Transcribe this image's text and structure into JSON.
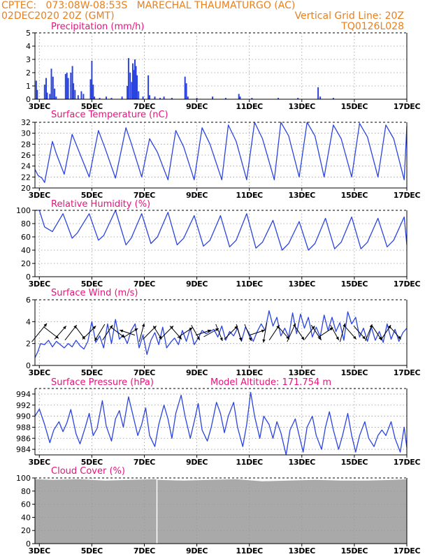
{
  "header": {
    "line1_left": "CPTEC:   073:08W-08:53S   MARECHAL THAUMATURGO (AC)",
    "line2_left": "02DEC2020 20Z (GMT)",
    "line2_right": "Vertical Grid Line: 20Z",
    "line3_right": "TQ0126L028"
  },
  "colors": {
    "header": "#e8801e",
    "title": "#e8127c",
    "series": "#2b44e0",
    "cloud": "#a9a9a9",
    "grid": "#999999"
  },
  "x_axis": {
    "start_day": 2.833,
    "end_day": 17.0,
    "ticks": [
      {
        "day": 3,
        "label": "3DEC"
      },
      {
        "day": 5,
        "label": "5DEC"
      },
      {
        "day": 7,
        "label": "7DEC"
      },
      {
        "day": 9,
        "label": "9DEC"
      },
      {
        "day": 11,
        "label": "11DEC"
      },
      {
        "day": 13,
        "label": "13DEC"
      },
      {
        "day": 15,
        "label": "15DEC"
      },
      {
        "day": 17,
        "label": "17DEC"
      }
    ]
  },
  "chart_data": [
    {
      "type": "bar",
      "title": "Precipitation (mm/h)",
      "ylim": [
        0,
        5
      ],
      "yticks": [
        "0",
        "1",
        "2",
        "3",
        "4",
        "5"
      ],
      "events": [
        {
          "day": 2.88,
          "value": 1.4
        },
        {
          "day": 2.92,
          "value": 0.7
        },
        {
          "day": 3.2,
          "value": 1.1
        },
        {
          "day": 3.26,
          "value": 1.6
        },
        {
          "day": 3.3,
          "value": 0.5
        },
        {
          "day": 3.4,
          "value": 0.4
        },
        {
          "day": 3.46,
          "value": 2.3
        },
        {
          "day": 3.52,
          "value": 1.7
        },
        {
          "day": 3.58,
          "value": 0.8
        },
        {
          "day": 3.64,
          "value": 0.2
        },
        {
          "day": 4.0,
          "value": 1.9
        },
        {
          "day": 4.05,
          "value": 2.0
        },
        {
          "day": 4.1,
          "value": 1.6
        },
        {
          "day": 4.2,
          "value": 2.0
        },
        {
          "day": 4.26,
          "value": 2.5
        },
        {
          "day": 4.3,
          "value": 1.2
        },
        {
          "day": 4.36,
          "value": 0.7
        },
        {
          "day": 4.48,
          "value": 0.3
        },
        {
          "day": 4.6,
          "value": 0.6
        },
        {
          "day": 4.68,
          "value": 0.4
        },
        {
          "day": 4.95,
          "value": 1.5
        },
        {
          "day": 5.0,
          "value": 2.9
        },
        {
          "day": 5.05,
          "value": 1.1
        },
        {
          "day": 5.1,
          "value": 0.2
        },
        {
          "day": 5.3,
          "value": 0.1
        },
        {
          "day": 5.55,
          "value": 0.2
        },
        {
          "day": 5.75,
          "value": 0.1
        },
        {
          "day": 6.15,
          "value": 0.2
        },
        {
          "day": 6.35,
          "value": 1.0
        },
        {
          "day": 6.4,
          "value": 3.1
        },
        {
          "day": 6.46,
          "value": 2.0
        },
        {
          "day": 6.52,
          "value": 1.3
        },
        {
          "day": 6.56,
          "value": 2.7
        },
        {
          "day": 6.6,
          "value": 2.2
        },
        {
          "day": 6.64,
          "value": 3.0
        },
        {
          "day": 6.68,
          "value": 2.5
        },
        {
          "day": 6.72,
          "value": 1.8
        },
        {
          "day": 6.78,
          "value": 0.6
        },
        {
          "day": 6.95,
          "value": 0.2
        },
        {
          "day": 7.15,
          "value": 1.8
        },
        {
          "day": 7.2,
          "value": 0.3
        },
        {
          "day": 7.4,
          "value": 0.2
        },
        {
          "day": 7.6,
          "value": 0.1
        },
        {
          "day": 7.75,
          "value": 0.2
        },
        {
          "day": 8.05,
          "value": 0.1
        },
        {
          "day": 8.55,
          "value": 1.7
        },
        {
          "day": 8.6,
          "value": 1.2
        },
        {
          "day": 8.66,
          "value": 0.2
        },
        {
          "day": 9.0,
          "value": 0.1
        },
        {
          "day": 9.6,
          "value": 0.2
        },
        {
          "day": 10.1,
          "value": 0.1
        },
        {
          "day": 10.6,
          "value": 0.4
        },
        {
          "day": 10.65,
          "value": 0.2
        },
        {
          "day": 11.1,
          "value": 0.1
        },
        {
          "day": 12.1,
          "value": 0.1
        },
        {
          "day": 12.85,
          "value": 0.1
        },
        {
          "day": 13.62,
          "value": 0.9
        },
        {
          "day": 13.7,
          "value": 0.2
        },
        {
          "day": 14.2,
          "value": 0.1
        }
      ]
    },
    {
      "type": "line",
      "title": "Surface Temperature (nC)",
      "ylim": [
        20,
        32
      ],
      "yticks": [
        "20",
        "22",
        "24",
        "26",
        "28",
        "30",
        "32"
      ],
      "x": [
        2.833,
        2.95,
        3.1,
        3.2,
        3.5,
        3.65,
        3.95,
        4.25,
        4.5,
        4.9,
        5.25,
        5.5,
        5.9,
        6.3,
        6.5,
        6.9,
        7.2,
        7.5,
        7.9,
        8.2,
        8.5,
        8.9,
        9.2,
        9.5,
        9.95,
        10.2,
        10.5,
        10.9,
        11.2,
        11.5,
        11.95,
        12.2,
        12.5,
        12.9,
        13.2,
        13.5,
        13.85,
        14.2,
        14.5,
        14.9,
        15.2,
        15.5,
        15.9,
        16.2,
        16.5,
        16.9,
        17.0
      ],
      "y": [
        23.4,
        22.3,
        21.8,
        21.0,
        28.5,
        26.2,
        22.5,
        29.8,
        26.8,
        22.0,
        30.5,
        27.3,
        21.8,
        31.0,
        28.2,
        22.0,
        29.0,
        26.5,
        21.5,
        30.5,
        27.5,
        21.5,
        31.0,
        28.0,
        21.5,
        31.5,
        28.5,
        21.5,
        32.0,
        29.0,
        21.5,
        32.0,
        29.5,
        22.0,
        32.0,
        29.5,
        22.0,
        31.5,
        29.0,
        22.0,
        31.8,
        29.3,
        22.0,
        31.5,
        29.0,
        21.5,
        31.3
      ]
    },
    {
      "type": "line",
      "title": "Relative Humidity (%)",
      "ylim": [
        0,
        100
      ],
      "yticks": [
        "0",
        "20",
        "40",
        "60",
        "80",
        "100"
      ],
      "x": [
        2.833,
        3.0,
        3.2,
        3.5,
        3.9,
        4.25,
        4.45,
        4.9,
        5.25,
        5.45,
        5.9,
        6.3,
        6.5,
        6.9,
        7.25,
        7.5,
        7.9,
        8.25,
        8.5,
        8.9,
        9.25,
        9.5,
        9.9,
        10.25,
        10.5,
        10.9,
        11.25,
        11.5,
        11.9,
        12.25,
        12.5,
        12.9,
        13.25,
        13.5,
        13.9,
        14.25,
        14.5,
        14.9,
        15.25,
        15.5,
        15.9,
        16.25,
        16.5,
        16.9,
        17.0
      ],
      "y": [
        100,
        100,
        75,
        68,
        95,
        58,
        66,
        95,
        55,
        62,
        100,
        48,
        58,
        95,
        50,
        60,
        97,
        48,
        58,
        92,
        46,
        55,
        92,
        45,
        55,
        95,
        43,
        52,
        85,
        40,
        50,
        83,
        40,
        50,
        88,
        42,
        52,
        90,
        42,
        52,
        88,
        45,
        55,
        90,
        48
      ]
    },
    {
      "type": "line",
      "title": "Surface Wind (m/s)",
      "ylim": [
        0,
        6
      ],
      "yticks": [
        "0",
        "2",
        "4",
        "6"
      ],
      "x": [
        2.833,
        2.95,
        3.05,
        3.2,
        3.35,
        3.5,
        3.65,
        3.8,
        3.95,
        4.1,
        4.25,
        4.4,
        4.55,
        4.7,
        4.85,
        5.0,
        5.15,
        5.3,
        5.45,
        5.6,
        5.75,
        5.9,
        6.05,
        6.2,
        6.35,
        6.5,
        6.65,
        6.8,
        6.95,
        7.1,
        7.25,
        7.4,
        7.55,
        7.7,
        7.85,
        8.0,
        8.15,
        8.3,
        8.45,
        8.6,
        8.75,
        8.9,
        9.05,
        9.2,
        9.35,
        9.5,
        9.65,
        9.8,
        9.95,
        10.1,
        10.25,
        10.4,
        10.55,
        10.7,
        10.85,
        11.0,
        11.15,
        11.3,
        11.45,
        11.6,
        11.75,
        11.9,
        12.05,
        12.2,
        12.35,
        12.5,
        12.65,
        12.8,
        12.95,
        13.1,
        13.25,
        13.4,
        13.55,
        13.7,
        13.85,
        14.0,
        14.15,
        14.3,
        14.45,
        14.6,
        14.75,
        14.9,
        15.05,
        15.2,
        15.35,
        15.5,
        15.65,
        15.8,
        15.95,
        16.1,
        16.25,
        16.4,
        16.55,
        16.7,
        16.85,
        17.0
      ],
      "y": [
        0.7,
        1.3,
        2.0,
        1.9,
        2.3,
        1.7,
        2.2,
        1.9,
        1.6,
        2.0,
        1.7,
        2.3,
        1.8,
        1.5,
        2.2,
        4.0,
        2.1,
        2.7,
        1.6,
        3.8,
        2.0,
        4.2,
        2.4,
        2.8,
        2.0,
        3.2,
        3.8,
        1.6,
        2.8,
        1.0,
        2.3,
        3.0,
        1.9,
        3.5,
        1.6,
        2.1,
        2.5,
        1.9,
        3.2,
        2.2,
        3.4,
        1.9,
        2.5,
        3.2,
        2.9,
        3.1,
        3.3,
        2.6,
        3.6,
        2.3,
        3.1,
        2.7,
        3.4,
        2.2,
        3.5,
        2.9,
        2.2,
        3.1,
        3.8,
        3.2,
        5.0,
        3.6,
        4.4,
        2.7,
        3.4,
        2.6,
        4.8,
        2.9,
        4.7,
        3.4,
        4.4,
        2.6,
        3.5,
        2.6,
        4.6,
        3.2,
        4.4,
        3.1,
        3.9,
        2.3,
        4.9,
        3.8,
        4.4,
        2.6,
        3.4,
        2.2,
        3.5,
        2.3,
        3.1,
        2.1,
        3.8,
        2.4,
        3.3,
        2.2,
        3.0,
        3.4
      ],
      "arrows": [
        {
          "day": 3.0,
          "u": 0.9,
          "v": 1.1
        },
        {
          "day": 3.45,
          "u": 0.9,
          "v": -0.7
        },
        {
          "day": 3.8,
          "u": 0.7,
          "v": 0.8
        },
        {
          "day": 4.2,
          "u": 0.7,
          "v": 0.9
        },
        {
          "day": 4.55,
          "u": 0.6,
          "v": -0.8
        },
        {
          "day": 4.9,
          "u": 0.8,
          "v": 0.8
        },
        {
          "day": 5.3,
          "u": -0.6,
          "v": -1.0
        },
        {
          "day": 5.6,
          "u": 0.6,
          "v": 0.9
        },
        {
          "day": 6.0,
          "u": 0.8,
          "v": -0.6
        },
        {
          "day": 6.35,
          "u": -0.9,
          "v": 0.3
        },
        {
          "day": 6.5,
          "u": 0.8,
          "v": 0.5
        },
        {
          "day": 6.9,
          "u": 0.3,
          "v": 1.1
        },
        {
          "day": 7.2,
          "u": 0.8,
          "v": 0.8
        },
        {
          "day": 7.5,
          "u": 0.5,
          "v": -0.8
        },
        {
          "day": 7.85,
          "u": 0.8,
          "v": 0.8
        },
        {
          "day": 8.2,
          "u": 0.7,
          "v": -0.8
        },
        {
          "day": 8.55,
          "u": 0.9,
          "v": 0.6
        },
        {
          "day": 8.95,
          "u": 0.5,
          "v": -0.9
        },
        {
          "day": 9.25,
          "u": 0.9,
          "v": 0.3
        },
        {
          "day": 9.55,
          "u": 0.9,
          "v": 0.5
        },
        {
          "day": 9.85,
          "u": 0.4,
          "v": -1.0
        },
        {
          "day": 10.3,
          "u": 0.8,
          "v": 0.8
        },
        {
          "day": 10.6,
          "u": 0.3,
          "v": -1.0
        },
        {
          "day": 10.95,
          "u": 0.4,
          "v": -1.0
        },
        {
          "day": 11.3,
          "u": 0.9,
          "v": 0.3
        },
        {
          "day": 11.6,
          "u": -0.2,
          "v": -1.2
        },
        {
          "day": 11.95,
          "u": 0.6,
          "v": 0.9
        },
        {
          "day": 12.3,
          "u": 0.7,
          "v": -0.8
        },
        {
          "day": 12.6,
          "u": 0.5,
          "v": 1.1
        },
        {
          "day": 12.9,
          "u": 0.6,
          "v": -0.9
        },
        {
          "day": 13.3,
          "u": 0.6,
          "v": 0.8
        },
        {
          "day": 13.55,
          "u": 0.6,
          "v": -0.9
        },
        {
          "day": 13.9,
          "u": 0.9,
          "v": 0.6
        },
        {
          "day": 14.25,
          "u": 0.5,
          "v": -0.9
        },
        {
          "day": 14.55,
          "u": 0.3,
          "v": 1.1
        },
        {
          "day": 14.85,
          "u": 0.7,
          "v": -0.8
        },
        {
          "day": 15.2,
          "u": 0.7,
          "v": -0.8
        },
        {
          "day": 15.55,
          "u": 0.4,
          "v": 1.0
        },
        {
          "day": 15.85,
          "u": 0.6,
          "v": -0.9
        },
        {
          "day": 16.2,
          "u": 0.6,
          "v": 0.9
        },
        {
          "day": 16.55,
          "u": 0.7,
          "v": -0.8
        }
      ]
    },
    {
      "type": "line",
      "title": "Surface Pressure (hPa)",
      "annotation": "Model Altitude: 171.754 m",
      "ylim": [
        983,
        995
      ],
      "yticks": [
        "984",
        "986",
        "988",
        "990",
        "992",
        "994"
      ],
      "x": [
        2.833,
        2.9,
        3.0,
        3.2,
        3.4,
        3.55,
        3.75,
        3.9,
        4.05,
        4.2,
        4.4,
        4.55,
        4.75,
        4.9,
        5.05,
        5.2,
        5.4,
        5.55,
        5.75,
        5.9,
        6.05,
        6.2,
        6.4,
        6.55,
        6.75,
        6.9,
        7.05,
        7.2,
        7.4,
        7.55,
        7.75,
        7.9,
        8.05,
        8.2,
        8.4,
        8.55,
        8.75,
        8.9,
        9.05,
        9.2,
        9.4,
        9.55,
        9.75,
        9.9,
        10.05,
        10.2,
        10.4,
        10.55,
        10.75,
        10.9,
        11.05,
        11.2,
        11.4,
        11.55,
        11.75,
        11.9,
        12.05,
        12.2,
        12.4,
        12.55,
        12.75,
        12.9,
        13.05,
        13.2,
        13.4,
        13.55,
        13.75,
        13.9,
        14.05,
        14.2,
        14.4,
        14.55,
        14.75,
        14.9,
        15.05,
        15.2,
        15.4,
        15.55,
        15.75,
        15.9,
        16.05,
        16.2,
        16.4,
        16.55,
        16.75,
        16.9,
        17.0
      ],
      "y": [
        990.0,
        990.5,
        991.3,
        988.5,
        985.2,
        987.5,
        989.0,
        987.2,
        988.8,
        991.2,
        986.8,
        985.0,
        988.0,
        990.5,
        986.5,
        987.8,
        992.8,
        988.2,
        985.5,
        989.5,
        991.0,
        988.0,
        993.5,
        990.5,
        986.5,
        988.5,
        991.5,
        986.5,
        984.5,
        988.5,
        992.0,
        989.5,
        986.0,
        990.5,
        993.8,
        990.0,
        986.0,
        989.0,
        992.3,
        987.5,
        985.5,
        988.0,
        992.5,
        990.5,
        987.0,
        990.0,
        992.5,
        988.0,
        984.5,
        988.5,
        994.3,
        990.0,
        986.0,
        990.0,
        988.5,
        986.0,
        989.0,
        987.0,
        983.0,
        987.5,
        989.5,
        986.5,
        983.5,
        988.0,
        990.0,
        986.5,
        984.0,
        988.0,
        990.8,
        987.5,
        984.0,
        986.5,
        990.5,
        986.5,
        983.5,
        986.5,
        989.0,
        986.0,
        984.5,
        986.5,
        987.5,
        986.5,
        989.0,
        986.0,
        983.5,
        988.0,
        984.3
      ]
    },
    {
      "type": "area",
      "title": "Cloud Cover (%)",
      "ylim": [
        0,
        100
      ],
      "yticks": [
        "0",
        "20",
        "40",
        "60",
        "80",
        "100"
      ],
      "x": [
        2.833,
        3.5,
        4.5,
        5.5,
        6.5,
        7.4,
        7.55,
        8.5,
        9.5,
        10.5,
        11.5,
        12.5,
        13.5,
        14.5,
        15.5,
        16.5,
        17.0
      ],
      "y": [
        98,
        97,
        98,
        96,
        97,
        98,
        97,
        96,
        97,
        98,
        95,
        96,
        97,
        96,
        96,
        97,
        98
      ],
      "gap_day": 7.48
    }
  ]
}
